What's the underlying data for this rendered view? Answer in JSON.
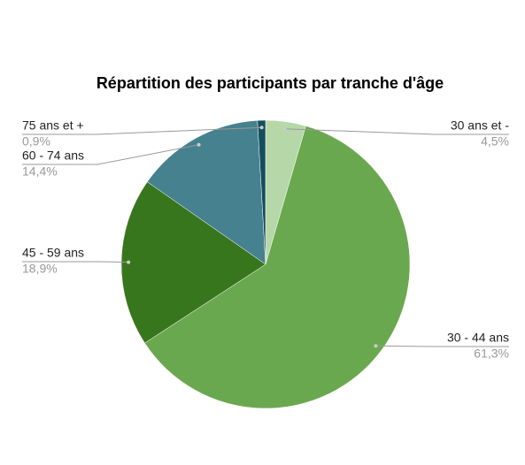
{
  "chart_data": {
    "type": "pie",
    "title": "Répartition des participants par tranche d'âge",
    "categories": [
      "30 ans et -",
      "30 - 44 ans",
      "45 - 59 ans",
      "60 - 74 ans",
      "75 ans et +"
    ],
    "values": [
      4.5,
      61.3,
      18.9,
      14.4,
      0.9
    ],
    "value_labels": [
      "4,5%",
      "61,3%",
      "18,9%",
      "14,4%",
      "0,9%"
    ],
    "colors": [
      "#b6d7a8",
      "#6aa84f",
      "#38761d",
      "#45818e",
      "#134f5c"
    ]
  }
}
